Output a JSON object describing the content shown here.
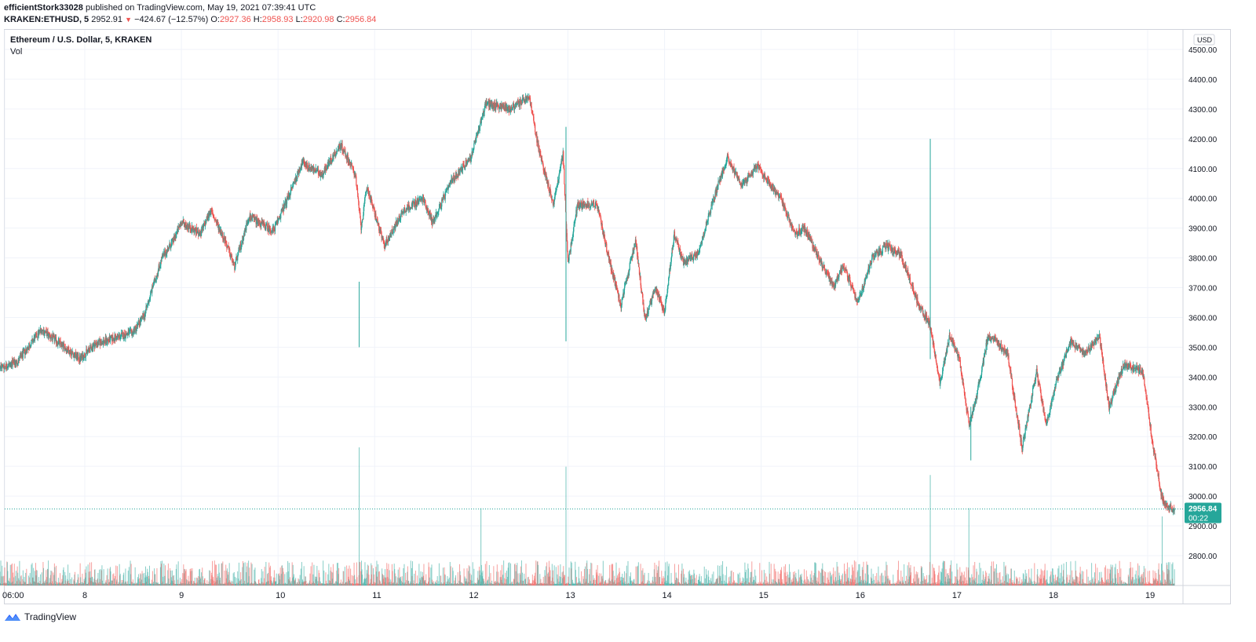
{
  "header": {
    "publisher": "efficientStork33028",
    "published_text": "published on TradingView.com, May 19, 2021 07:39:41 UTC",
    "symbol": "KRAKEN:ETHUSD, 5",
    "last": "2952.91",
    "change": "−424.67 (−12.57%)",
    "o_label": "O:",
    "o_value": "2927.36",
    "h_label": "H:",
    "h_value": "2958.93",
    "l_label": "L:",
    "l_value": "2920.98",
    "c_label": "C:",
    "c_value": "2956.84"
  },
  "legend": {
    "title": "Ethereum / U.S. Dollar, 5, KRAKEN",
    "vol": "Vol"
  },
  "price_badge": {
    "value": "2956.84",
    "countdown": "00:22"
  },
  "footer": {
    "brand": "TradingView"
  },
  "colors": {
    "up": "#26a69a",
    "down": "#ef5350",
    "grid": "#f0f3fa",
    "axis_text": "#131722",
    "badge": "#26a69a"
  },
  "chart_data": {
    "type": "candlestick",
    "title": "Ethereum / U.S. Dollar, 5, KRAKEN",
    "currency": "USD",
    "ylim": [
      2700,
      4520
    ],
    "y_ticks": [
      "4500.00",
      "4400.00",
      "4300.00",
      "4200.00",
      "4100.00",
      "4000.00",
      "3900.00",
      "3800.00",
      "3700.00",
      "3600.00",
      "3500.00",
      "3400.00",
      "3300.00",
      "3200.00",
      "3100.00",
      "3000.00",
      "2900.00",
      "2800.00"
    ],
    "x_ticks": [
      "06:00",
      "8",
      "9",
      "10",
      "11",
      "12",
      "13",
      "14",
      "15",
      "16",
      "17",
      "18",
      "19"
    ],
    "last_price": 2956.84,
    "close_path": [
      {
        "day": 7.0,
        "price": 3420
      },
      {
        "day": 7.3,
        "price": 3450
      },
      {
        "day": 7.55,
        "price": 3560
      },
      {
        "day": 7.95,
        "price": 3460
      },
      {
        "day": 8.1,
        "price": 3510
      },
      {
        "day": 8.5,
        "price": 3550
      },
      {
        "day": 8.62,
        "price": 3610
      },
      {
        "day": 8.7,
        "price": 3700
      },
      {
        "day": 8.8,
        "price": 3800
      },
      {
        "day": 8.92,
        "price": 3860
      },
      {
        "day": 9.0,
        "price": 3920
      },
      {
        "day": 9.2,
        "price": 3880
      },
      {
        "day": 9.3,
        "price": 3960
      },
      {
        "day": 9.45,
        "price": 3860
      },
      {
        "day": 9.55,
        "price": 3770
      },
      {
        "day": 9.7,
        "price": 3940
      },
      {
        "day": 9.95,
        "price": 3890
      },
      {
        "day": 10.1,
        "price": 4000
      },
      {
        "day": 10.25,
        "price": 4120
      },
      {
        "day": 10.45,
        "price": 4080
      },
      {
        "day": 10.65,
        "price": 4180
      },
      {
        "day": 10.8,
        "price": 4080
      },
      {
        "day": 10.86,
        "price": 3900
      },
      {
        "day": 10.92,
        "price": 4040
      },
      {
        "day": 11.1,
        "price": 3840
      },
      {
        "day": 11.3,
        "price": 3960
      },
      {
        "day": 11.5,
        "price": 4000
      },
      {
        "day": 11.6,
        "price": 3920
      },
      {
        "day": 11.8,
        "price": 4060
      },
      {
        "day": 12.0,
        "price": 4140
      },
      {
        "day": 12.15,
        "price": 4320
      },
      {
        "day": 12.4,
        "price": 4300
      },
      {
        "day": 12.6,
        "price": 4340
      },
      {
        "day": 12.7,
        "price": 4160
      },
      {
        "day": 12.85,
        "price": 3980
      },
      {
        "day": 12.95,
        "price": 4150
      },
      {
        "day": 13.0,
        "price": 3780
      },
      {
        "day": 13.1,
        "price": 3980
      },
      {
        "day": 13.3,
        "price": 3980
      },
      {
        "day": 13.45,
        "price": 3760
      },
      {
        "day": 13.55,
        "price": 3640
      },
      {
        "day": 13.7,
        "price": 3860
      },
      {
        "day": 13.8,
        "price": 3590
      },
      {
        "day": 13.9,
        "price": 3700
      },
      {
        "day": 14.0,
        "price": 3620
      },
      {
        "day": 14.1,
        "price": 3880
      },
      {
        "day": 14.2,
        "price": 3780
      },
      {
        "day": 14.35,
        "price": 3820
      },
      {
        "day": 14.5,
        "price": 3990
      },
      {
        "day": 14.65,
        "price": 4140
      },
      {
        "day": 14.8,
        "price": 4040
      },
      {
        "day": 14.95,
        "price": 4110
      },
      {
        "day": 15.2,
        "price": 4000
      },
      {
        "day": 15.35,
        "price": 3880
      },
      {
        "day": 15.45,
        "price": 3900
      },
      {
        "day": 15.55,
        "price": 3830
      },
      {
        "day": 15.75,
        "price": 3700
      },
      {
        "day": 15.85,
        "price": 3780
      },
      {
        "day": 16.0,
        "price": 3650
      },
      {
        "day": 16.15,
        "price": 3800
      },
      {
        "day": 16.3,
        "price": 3840
      },
      {
        "day": 16.45,
        "price": 3810
      },
      {
        "day": 16.62,
        "price": 3650
      },
      {
        "day": 16.75,
        "price": 3570
      },
      {
        "day": 16.85,
        "price": 3380
      },
      {
        "day": 16.95,
        "price": 3540
      },
      {
        "day": 17.05,
        "price": 3460
      },
      {
        "day": 17.15,
        "price": 3240
      },
      {
        "day": 17.22,
        "price": 3320
      },
      {
        "day": 17.35,
        "price": 3540
      },
      {
        "day": 17.55,
        "price": 3480
      },
      {
        "day": 17.7,
        "price": 3160
      },
      {
        "day": 17.85,
        "price": 3420
      },
      {
        "day": 17.95,
        "price": 3240
      },
      {
        "day": 18.05,
        "price": 3380
      },
      {
        "day": 18.2,
        "price": 3520
      },
      {
        "day": 18.35,
        "price": 3480
      },
      {
        "day": 18.5,
        "price": 3540
      },
      {
        "day": 18.6,
        "price": 3300
      },
      {
        "day": 18.75,
        "price": 3440
      },
      {
        "day": 18.95,
        "price": 3420
      },
      {
        "day": 19.05,
        "price": 3180
      },
      {
        "day": 19.15,
        "price": 2990
      },
      {
        "day": 19.22,
        "price": 2960
      },
      {
        "day": 19.28,
        "price": 2957
      }
    ],
    "spike_wicks": [
      {
        "day": 10.84,
        "high": 3720,
        "low": 3500
      },
      {
        "day": 12.98,
        "high": 4240,
        "low": 3520
      },
      {
        "day": 16.75,
        "high": 4200,
        "low": 3460
      },
      {
        "day": 17.17,
        "high": 3300,
        "low": 3120
      }
    ],
    "volume_spikes": [
      {
        "day": 10.84,
        "relative": 1.0
      },
      {
        "day": 12.98,
        "relative": 0.86
      },
      {
        "day": 16.75,
        "relative": 0.8
      },
      {
        "day": 12.1,
        "relative": 0.56
      },
      {
        "day": 17.15,
        "relative": 0.56
      },
      {
        "day": 19.15,
        "relative": 0.5
      }
    ]
  }
}
